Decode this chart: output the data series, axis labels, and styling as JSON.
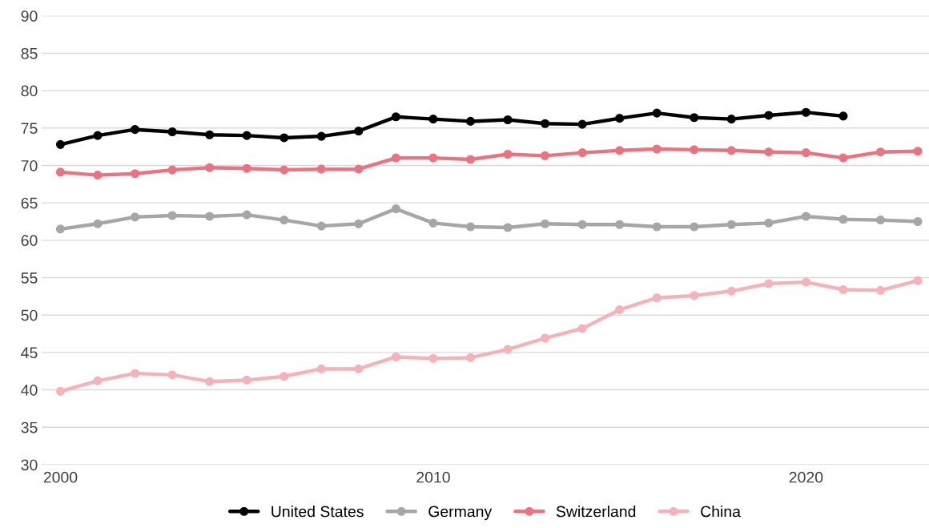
{
  "chart_data": {
    "type": "line",
    "x": [
      2000,
      2001,
      2002,
      2003,
      2004,
      2005,
      2006,
      2007,
      2008,
      2009,
      2010,
      2011,
      2012,
      2013,
      2014,
      2015,
      2016,
      2017,
      2018,
      2019,
      2020,
      2021,
      2022,
      2023
    ],
    "series": [
      {
        "name": "United States",
        "color": "#000000",
        "values": [
          72.8,
          74.0,
          74.8,
          74.5,
          74.1,
          74.0,
          73.7,
          73.9,
          74.6,
          76.5,
          76.2,
          75.9,
          76.1,
          75.6,
          75.5,
          76.3,
          77.0,
          76.4,
          76.2,
          76.7,
          77.1,
          76.6,
          null,
          null
        ]
      },
      {
        "name": "Germany",
        "color": "#a6a6a6",
        "values": [
          61.5,
          62.2,
          63.1,
          63.3,
          63.2,
          63.4,
          62.7,
          61.9,
          62.2,
          64.2,
          62.3,
          61.8,
          61.7,
          62.2,
          62.1,
          62.1,
          61.8,
          61.8,
          62.1,
          62.3,
          63.2,
          62.8,
          62.7,
          62.5
        ]
      },
      {
        "name": "Switzerland",
        "color": "#e97480",
        "values": [
          69.1,
          68.7,
          68.9,
          69.4,
          69.7,
          69.6,
          69.4,
          69.5,
          69.5,
          71.0,
          71.0,
          70.8,
          71.5,
          71.3,
          71.7,
          72.0,
          72.2,
          72.1,
          72.0,
          71.8,
          71.7,
          71.0,
          71.8,
          71.9
        ]
      },
      {
        "name": "China",
        "color": "#f4b3b8",
        "values": [
          39.8,
          41.2,
          42.2,
          42.0,
          41.1,
          41.3,
          41.8,
          42.8,
          42.8,
          44.4,
          44.2,
          44.3,
          45.4,
          46.9,
          48.2,
          50.7,
          52.3,
          52.6,
          53.2,
          54.2,
          54.4,
          53.4,
          53.3,
          54.6
        ]
      }
    ],
    "xlim": [
      1999.5,
      2023.3
    ],
    "xticks": [
      2000,
      2010,
      2020
    ],
    "ylim": [
      30,
      90
    ],
    "yticks": [
      30,
      35,
      40,
      45,
      50,
      55,
      60,
      65,
      70,
      75,
      80,
      85,
      90
    ],
    "grid": "y",
    "legend": "bottom",
    "marker": "circle",
    "line_style": "solid"
  }
}
